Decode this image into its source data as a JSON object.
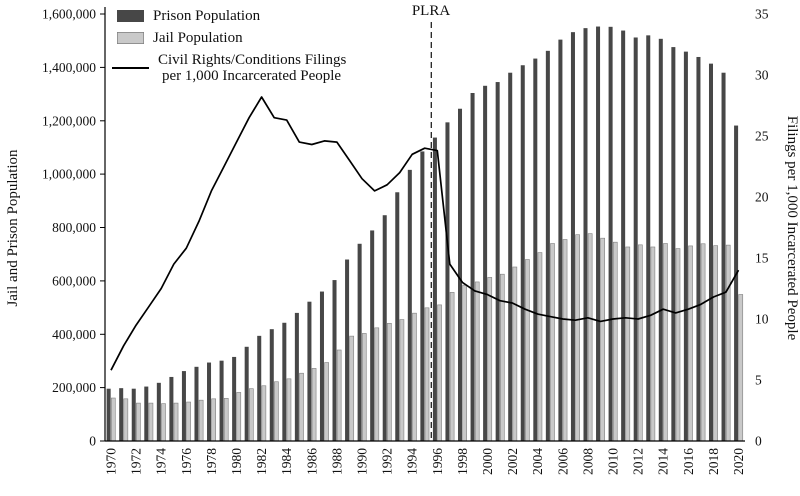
{
  "colors": {
    "prison": "#474747",
    "jail": "#c9c9c9",
    "jail_stroke": "#7f7f7f",
    "line": "#000000",
    "background": "#ffffff"
  },
  "legend": {
    "prison_label": "Prison Population",
    "jail_label": "Jail Population",
    "filings_label_line1": "Civil Rights/Conditions Filings",
    "filings_label_line2": "per 1,000 Incarcerated People"
  },
  "annotation": {
    "label": "PLRA"
  },
  "chart_data": {
    "type": "bar+line",
    "left_axis_title": "Jail and Prison Population",
    "right_axis_title": "Filings per 1,000 Incarcerated People",
    "left_ylim": [
      0,
      1600000
    ],
    "right_ylim": [
      0,
      35
    ],
    "plra_year": 1996,
    "legend_position": "top-left",
    "grid": false,
    "x": [
      1970,
      1971,
      1972,
      1973,
      1974,
      1975,
      1976,
      1977,
      1978,
      1979,
      1980,
      1981,
      1982,
      1983,
      1984,
      1985,
      1986,
      1987,
      1988,
      1989,
      1990,
      1991,
      1992,
      1993,
      1994,
      1995,
      1996,
      1997,
      1998,
      1999,
      2000,
      2001,
      2002,
      2003,
      2004,
      2005,
      2006,
      2007,
      2008,
      2009,
      2010,
      2011,
      2012,
      2013,
      2014,
      2015,
      2016,
      2017,
      2018,
      2019,
      2020
    ],
    "x_tick_labels": [
      "1970",
      "1972",
      "1974",
      "1976",
      "1978",
      "1980",
      "1982",
      "1984",
      "1986",
      "1988",
      "1990",
      "1992",
      "1994",
      "1996",
      "1998",
      "2000",
      "2002",
      "2004",
      "2006",
      "2008",
      "2010",
      "2012",
      "2014",
      "2016",
      "2018",
      "2020"
    ],
    "left_ticks": [
      {
        "value": 0,
        "label": "0"
      },
      {
        "value": 200000,
        "label": "200,000"
      },
      {
        "value": 400000,
        "label": "400,000"
      },
      {
        "value": 600000,
        "label": "600,000"
      },
      {
        "value": 800000,
        "label": "800,000"
      },
      {
        "value": 1000000,
        "label": "1,000,000"
      },
      {
        "value": 1200000,
        "label": "1,200,000"
      },
      {
        "value": 1400000,
        "label": "1,400,000"
      },
      {
        "value": 1600000,
        "label": "1,600,000"
      }
    ],
    "right_ticks": [
      {
        "value": 0,
        "label": "0"
      },
      {
        "value": 5,
        "label": "5"
      },
      {
        "value": 10,
        "label": "10"
      },
      {
        "value": 15,
        "label": "15"
      },
      {
        "value": 20,
        "label": "20"
      },
      {
        "value": 25,
        "label": "25"
      },
      {
        "value": 30,
        "label": "30"
      },
      {
        "value": 35,
        "label": "35"
      }
    ],
    "series": [
      {
        "name": "Prison Population",
        "type": "bar",
        "axis": "left",
        "values": [
          196000,
          198000,
          196000,
          204000,
          218000,
          240000,
          262000,
          278000,
          294000,
          301000,
          315000,
          353000,
          394000,
          419000,
          443000,
          480000,
          522000,
          560000,
          603000,
          680000,
          739000,
          789000,
          846000,
          932000,
          1016000,
          1085000,
          1137000,
          1194000,
          1245000,
          1304000,
          1331000,
          1345000,
          1380000,
          1408000,
          1433000,
          1462000,
          1504000,
          1532000,
          1547000,
          1553000,
          1552000,
          1538000,
          1512000,
          1520000,
          1507000,
          1476000,
          1459000,
          1439000,
          1414000,
          1380000,
          1182000
        ]
      },
      {
        "name": "Jail Population",
        "type": "bar",
        "axis": "left",
        "values": [
          161000,
          158000,
          142000,
          142000,
          140000,
          142000,
          146000,
          153000,
          158000,
          160000,
          182000,
          196000,
          207000,
          222000,
          233000,
          254000,
          272000,
          294000,
          341000,
          393000,
          403000,
          424000,
          441000,
          455000,
          479000,
          499000,
          510000,
          557000,
          584000,
          596000,
          613000,
          625000,
          652000,
          680000,
          706000,
          740000,
          755000,
          773000,
          777000,
          760000,
          745000,
          727000,
          735000,
          727000,
          740000,
          721000,
          731000,
          739000,
          732000,
          734000,
          549000
        ]
      },
      {
        "name": "Civil Rights/Conditions Filings per 1,000 Incarcerated People",
        "type": "line",
        "axis": "right",
        "values": [
          5.8,
          7.8,
          9.5,
          11.0,
          12.5,
          14.5,
          15.8,
          18.0,
          20.5,
          22.5,
          24.5,
          26.5,
          28.2,
          26.5,
          26.3,
          24.5,
          24.3,
          24.6,
          24.5,
          23.0,
          21.5,
          20.5,
          21.0,
          22.0,
          23.5,
          24.0,
          23.8,
          14.5,
          13.0,
          12.3,
          12.0,
          11.5,
          11.3,
          10.8,
          10.4,
          10.2,
          10.0,
          9.9,
          10.1,
          9.8,
          10.0,
          10.1,
          10.0,
          10.3,
          10.8,
          10.5,
          10.8,
          11.2,
          11.8,
          12.2,
          14.0
        ]
      }
    ]
  }
}
